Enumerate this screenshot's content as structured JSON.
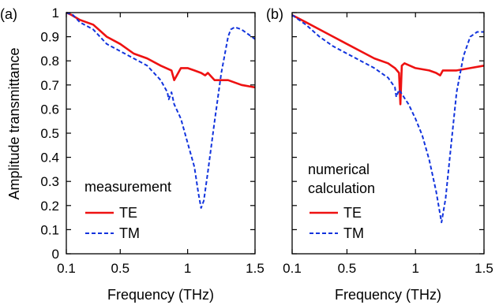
{
  "chart_data": [
    {
      "type": "line",
      "panel_label": "(a)",
      "xlabel": "Frequency (THz)",
      "ylabel": "Amplitude transmittance",
      "xlim": [
        0.1,
        1.5
      ],
      "ylim": [
        0,
        1
      ],
      "xticks": [
        {
          "value": 0.1,
          "label": "0.1"
        },
        {
          "value": 0.5,
          "label": "0.5"
        },
        {
          "value": 1.0,
          "label": "1"
        },
        {
          "value": 1.5,
          "label": "1.5"
        }
      ],
      "yticks": [
        {
          "value": 0.0,
          "label": "0"
        },
        {
          "value": 0.1,
          "label": "0.1"
        },
        {
          "value": 0.2,
          "label": "0.2"
        },
        {
          "value": 0.3,
          "label": "0.3"
        },
        {
          "value": 0.4,
          "label": "0.4"
        },
        {
          "value": 0.5,
          "label": "0.5"
        },
        {
          "value": 0.6,
          "label": "0.6"
        },
        {
          "value": 0.7,
          "label": "0.7"
        },
        {
          "value": 0.8,
          "label": "0.8"
        },
        {
          "value": 0.9,
          "label": "0.9"
        },
        {
          "value": 1.0,
          "label": "1"
        }
      ],
      "annotation": [
        "measurement"
      ],
      "legend_position": "bottom-left",
      "series": [
        {
          "name": "TE",
          "color": "#ee1111",
          "style": "solid",
          "points": [
            [
              0.1,
              1.0
            ],
            [
              0.14,
              0.99
            ],
            [
              0.2,
              0.97
            ],
            [
              0.3,
              0.95
            ],
            [
              0.4,
              0.9
            ],
            [
              0.5,
              0.87
            ],
            [
              0.6,
              0.83
            ],
            [
              0.7,
              0.81
            ],
            [
              0.8,
              0.78
            ],
            [
              0.88,
              0.76
            ],
            [
              0.9,
              0.72
            ],
            [
              0.92,
              0.74
            ],
            [
              0.95,
              0.77
            ],
            [
              1.0,
              0.77
            ],
            [
              1.05,
              0.76
            ],
            [
              1.1,
              0.75
            ],
            [
              1.13,
              0.74
            ],
            [
              1.15,
              0.75
            ],
            [
              1.2,
              0.72
            ],
            [
              1.3,
              0.72
            ],
            [
              1.4,
              0.7
            ],
            [
              1.5,
              0.69
            ]
          ]
        },
        {
          "name": "TM",
          "color": "#1133dd",
          "style": "dashed",
          "points": [
            [
              0.1,
              1.0
            ],
            [
              0.15,
              0.99
            ],
            [
              0.2,
              0.96
            ],
            [
              0.3,
              0.93
            ],
            [
              0.4,
              0.87
            ],
            [
              0.5,
              0.84
            ],
            [
              0.6,
              0.81
            ],
            [
              0.7,
              0.78
            ],
            [
              0.8,
              0.72
            ],
            [
              0.85,
              0.67
            ],
            [
              0.86,
              0.64
            ],
            [
              0.88,
              0.67
            ],
            [
              0.9,
              0.62
            ],
            [
              0.95,
              0.56
            ],
            [
              1.0,
              0.46
            ],
            [
              1.05,
              0.36
            ],
            [
              1.08,
              0.25
            ],
            [
              1.1,
              0.19
            ],
            [
              1.12,
              0.22
            ],
            [
              1.15,
              0.34
            ],
            [
              1.2,
              0.55
            ],
            [
              1.25,
              0.75
            ],
            [
              1.3,
              0.9
            ],
            [
              1.32,
              0.93
            ],
            [
              1.35,
              0.94
            ],
            [
              1.4,
              0.93
            ],
            [
              1.45,
              0.91
            ],
            [
              1.5,
              0.89
            ]
          ]
        }
      ]
    },
    {
      "type": "line",
      "panel_label": "(b)",
      "xlabel": "Frequency (THz)",
      "ylabel": "",
      "xlim": [
        0.1,
        1.5
      ],
      "ylim": [
        0,
        1
      ],
      "xticks": [
        {
          "value": 0.1,
          "label": "0.1"
        },
        {
          "value": 0.5,
          "label": "0.5"
        },
        {
          "value": 1.0,
          "label": "1"
        },
        {
          "value": 1.5,
          "label": "1.5"
        }
      ],
      "yticks": [],
      "annotation": [
        "numerical",
        "calculation"
      ],
      "legend_position": "bottom-left",
      "series": [
        {
          "name": "TE",
          "color": "#ee1111",
          "style": "solid",
          "points": [
            [
              0.1,
              0.99
            ],
            [
              0.2,
              0.96
            ],
            [
              0.3,
              0.93
            ],
            [
              0.4,
              0.9
            ],
            [
              0.5,
              0.87
            ],
            [
              0.6,
              0.84
            ],
            [
              0.7,
              0.81
            ],
            [
              0.8,
              0.79
            ],
            [
              0.85,
              0.77
            ],
            [
              0.88,
              0.75
            ],
            [
              0.89,
              0.62
            ],
            [
              0.9,
              0.78
            ],
            [
              0.92,
              0.79
            ],
            [
              1.0,
              0.77
            ],
            [
              1.1,
              0.76
            ],
            [
              1.15,
              0.75
            ],
            [
              1.18,
              0.74
            ],
            [
              1.2,
              0.76
            ],
            [
              1.3,
              0.76
            ],
            [
              1.4,
              0.77
            ],
            [
              1.5,
              0.78
            ]
          ]
        },
        {
          "name": "TM",
          "color": "#1133dd",
          "style": "dashed",
          "points": [
            [
              0.1,
              0.99
            ],
            [
              0.2,
              0.95
            ],
            [
              0.3,
              0.9
            ],
            [
              0.4,
              0.86
            ],
            [
              0.5,
              0.83
            ],
            [
              0.6,
              0.8
            ],
            [
              0.7,
              0.77
            ],
            [
              0.8,
              0.73
            ],
            [
              0.85,
              0.69
            ],
            [
              0.86,
              0.65
            ],
            [
              0.88,
              0.68
            ],
            [
              0.95,
              0.62
            ],
            [
              1.0,
              0.56
            ],
            [
              1.05,
              0.49
            ],
            [
              1.1,
              0.39
            ],
            [
              1.15,
              0.26
            ],
            [
              1.19,
              0.13
            ],
            [
              1.22,
              0.23
            ],
            [
              1.26,
              0.45
            ],
            [
              1.3,
              0.67
            ],
            [
              1.35,
              0.82
            ],
            [
              1.4,
              0.9
            ],
            [
              1.45,
              0.92
            ],
            [
              1.5,
              0.92
            ]
          ]
        }
      ]
    }
  ]
}
